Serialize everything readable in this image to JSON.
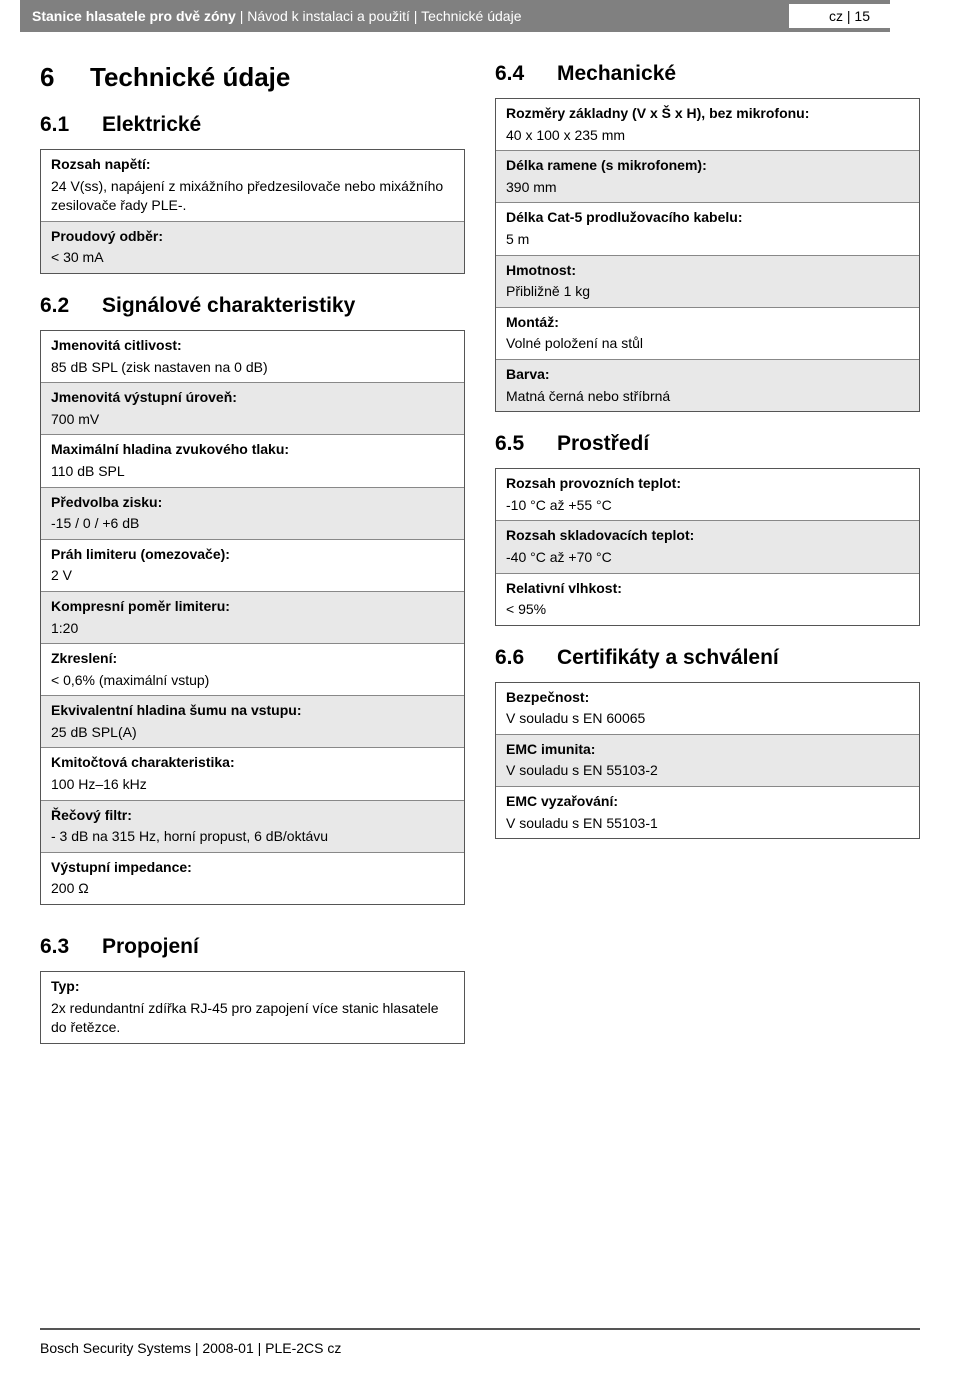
{
  "header": {
    "title_bold": "Stanice hlasatele pro dvě zóny",
    "title_rest": " | Návod k instalaci a použití | Technické údaje",
    "page_info": "cz | 15"
  },
  "main_heading": {
    "num": "6",
    "text": "Technické údaje"
  },
  "sections": {
    "s61": {
      "num": "6.1",
      "title": "Elektrické",
      "rows": [
        {
          "label": "Rozsah napětí:",
          "value": "24 V(ss), napájení z mixážního předzesilovače nebo mixážního zesilovače řady PLE-.",
          "shaded": false
        },
        {
          "label": "Proudový odběr:",
          "value": "< 30 mA",
          "shaded": true
        }
      ]
    },
    "s62": {
      "num": "6.2",
      "title": "Signálové charakteristiky",
      "rows": [
        {
          "label": "Jmenovitá citlivost:",
          "value": "85 dB SPL (zisk nastaven na 0 dB)",
          "shaded": false
        },
        {
          "label": "Jmenovitá výstupní úroveň:",
          "value": "700 mV",
          "shaded": true
        },
        {
          "label": "Maximální hladina zvukového tlaku:",
          "value": "110 dB SPL",
          "shaded": false
        },
        {
          "label": "Předvolba zisku:",
          "value": "-15 / 0 / +6 dB",
          "shaded": true
        },
        {
          "label": "Práh limiteru (omezovače):",
          "value": "2 V",
          "shaded": false
        },
        {
          "label": "Kompresní poměr limiteru:",
          "value": "1:20",
          "shaded": true
        },
        {
          "label": "Zkreslení:",
          "value": "< 0,6% (maximální vstup)",
          "shaded": false
        },
        {
          "label": "Ekvivalentní hladina šumu na vstupu:",
          "value": "25 dB SPL(A)",
          "shaded": true
        },
        {
          "label": "Kmitočtová charakteristika:",
          "value": "100 Hz–16 kHz",
          "shaded": false
        },
        {
          "label": "Řečový filtr:",
          "value": "- 3 dB na 315 Hz, horní propust, 6 dB/oktávu",
          "shaded": true
        },
        {
          "label": "Výstupní impedance:",
          "value": "200 Ω",
          "shaded": false
        }
      ]
    },
    "s63": {
      "num": "6.3",
      "title": "Propojení",
      "rows": [
        {
          "label": "Typ:",
          "value": "2x redundantní zdířka RJ-45 pro zapojení více stanic hlasatele do řetězce.",
          "shaded": false
        }
      ]
    },
    "s64": {
      "num": "6.4",
      "title": "Mechanické",
      "rows": [
        {
          "label": "Rozměry základny (V x Š x H), bez mikrofonu:",
          "value": "40 x 100 x 235 mm",
          "shaded": false
        },
        {
          "label": "Délka ramene (s mikrofonem):",
          "value": "390 mm",
          "shaded": true
        },
        {
          "label": "Délka Cat-5 prodlužovacího kabelu:",
          "value": "5 m",
          "shaded": false
        },
        {
          "label": "Hmotnost:",
          "value": "Přibližně 1 kg",
          "shaded": true
        },
        {
          "label": "Montáž:",
          "value": "Volné položení na stůl",
          "shaded": false
        },
        {
          "label": "Barva:",
          "value": "Matná černá nebo stříbrná",
          "shaded": true
        }
      ]
    },
    "s65": {
      "num": "6.5",
      "title": "Prostředí",
      "rows": [
        {
          "label": "Rozsah provozních teplot:",
          "value": "-10 °C až +55 °C",
          "shaded": false
        },
        {
          "label": "Rozsah skladovacích teplot:",
          "value": "-40 °C až +70 °C",
          "shaded": true
        },
        {
          "label": "Relativní vlhkost:",
          "value": "< 95%",
          "shaded": false
        }
      ]
    },
    "s66": {
      "num": "6.6",
      "title": "Certifikáty a schválení",
      "rows": [
        {
          "label": "Bezpečnost:",
          "value": "V souladu s EN 60065",
          "shaded": false
        },
        {
          "label": "EMC imunita:",
          "value": "V souladu s EN 55103-2",
          "shaded": true
        },
        {
          "label": "EMC vyzařování:",
          "value": "V souladu s EN 55103-1",
          "shaded": false
        }
      ]
    }
  },
  "footer": "Bosch Security Systems | 2008-01 | PLE-2CS cz"
}
